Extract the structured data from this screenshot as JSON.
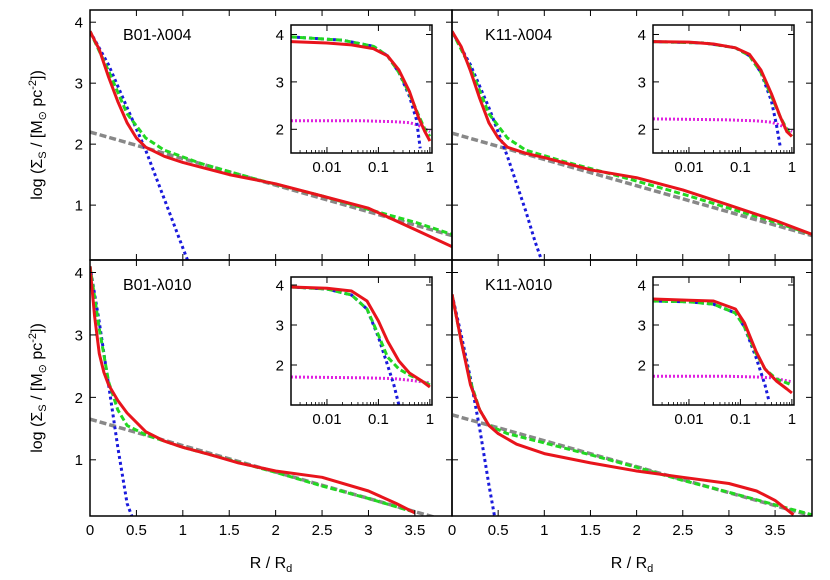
{
  "figure": {
    "ylabel_main": "log (Σ",
    "ylabel_sub": "S",
    "ylabel_tail": " / [M",
    "ylabel_sun": "⊙",
    "ylabel_units": " pc",
    "ylabel_exp": "-2",
    "ylabel_close": "])",
    "xlabel_main": "R / R",
    "xlabel_sub": "d"
  },
  "colors": {
    "total": "#e8141c",
    "sum": "#22d822",
    "bulge": "#1a1adc",
    "disk_inner": "#e020e0",
    "disk": "#888888"
  },
  "chart_data": [
    {
      "type": "line",
      "title": "B01-λ004",
      "xlim": [
        0,
        3.9
      ],
      "ylim": [
        0.1,
        4.2
      ],
      "x_ticks": [
        0,
        0.5,
        1,
        1.5,
        2,
        2.5,
        3,
        3.5
      ],
      "x_tick_labels": [
        "",
        "",
        "",
        "",
        "",
        "",
        "",
        ""
      ],
      "y_ticks": [
        1,
        2,
        3,
        4
      ],
      "y_tick_labels": [
        "1",
        "2",
        "3",
        "4"
      ],
      "series": [
        {
          "key": "disk",
          "x": [
            0,
            3.9
          ],
          "y": [
            2.2,
            0.5
          ]
        },
        {
          "key": "bulge",
          "x": [
            0,
            0.2,
            0.4,
            0.6,
            0.8,
            1.0,
            1.05
          ],
          "y": [
            3.85,
            3.3,
            2.6,
            1.9,
            1.1,
            0.3,
            0.1
          ]
        },
        {
          "key": "sum",
          "x": [
            0,
            0.2,
            0.4,
            0.6,
            0.8,
            1.2,
            1.8,
            2.5,
            3.0,
            3.5,
            3.9
          ],
          "y": [
            3.85,
            3.2,
            2.5,
            2.1,
            1.9,
            1.68,
            1.42,
            1.15,
            0.93,
            0.72,
            0.52
          ]
        },
        {
          "key": "total",
          "x": [
            0,
            0.1,
            0.2,
            0.3,
            0.4,
            0.5,
            0.6,
            0.8,
            1.0,
            1.2,
            1.5,
            2.0,
            2.5,
            3.0,
            3.5,
            3.9
          ],
          "y": [
            3.85,
            3.55,
            3.1,
            2.7,
            2.35,
            2.1,
            1.95,
            1.8,
            1.7,
            1.62,
            1.5,
            1.35,
            1.15,
            0.95,
            0.6,
            0.32
          ]
        }
      ],
      "inset": {
        "xlim": [
          0.002,
          1.1
        ],
        "ylim": [
          1.5,
          4.2
        ],
        "x_ticks": [
          0.01,
          0.1,
          1
        ],
        "x_tick_labels": [
          "0.01",
          "0.1",
          "1"
        ],
        "y_ticks": [
          2,
          3,
          4
        ],
        "y_tick_labels": [
          "2",
          "3",
          "4"
        ],
        "series": [
          {
            "key": "disk_inner",
            "x": [
              0.002,
              0.05,
              0.2,
              0.4,
              0.55,
              0.7,
              1.0
            ],
            "y": [
              2.18,
              2.18,
              2.16,
              2.14,
              2.1,
              2.05,
              1.95
            ]
          },
          {
            "key": "bulge",
            "x": [
              0.002,
              0.02,
              0.08,
              0.15,
              0.25,
              0.4,
              0.55,
              0.65
            ],
            "y": [
              3.95,
              3.88,
              3.75,
              3.55,
              3.2,
              2.7,
              2.2,
              1.6
            ]
          },
          {
            "key": "sum",
            "x": [
              0.002,
              0.02,
              0.08,
              0.15,
              0.25,
              0.4,
              0.6,
              0.8,
              1.0
            ],
            "y": [
              3.95,
              3.88,
              3.75,
              3.55,
              3.2,
              2.75,
              2.3,
              2.0,
              1.85
            ]
          },
          {
            "key": "total",
            "x": [
              0.002,
              0.01,
              0.03,
              0.08,
              0.15,
              0.25,
              0.4,
              0.6,
              0.8,
              1.0
            ],
            "y": [
              3.85,
              3.82,
              3.78,
              3.7,
              3.55,
              3.25,
              2.8,
              2.25,
              1.95,
              1.75
            ]
          }
        ]
      }
    },
    {
      "type": "line",
      "title": "K11-λ004",
      "xlim": [
        0,
        3.9
      ],
      "ylim": [
        0.1,
        4.2
      ],
      "x_ticks": [
        0,
        0.5,
        1,
        1.5,
        2,
        2.5,
        3,
        3.5
      ],
      "x_tick_labels": [
        "",
        "",
        "",
        "",
        "",
        "",
        "",
        ""
      ],
      "y_ticks": [
        1,
        2,
        3,
        4
      ],
      "y_tick_labels": [
        "",
        "",
        "",
        ""
      ],
      "series": [
        {
          "key": "disk",
          "x": [
            0,
            3.9
          ],
          "y": [
            2.18,
            0.5
          ]
        },
        {
          "key": "bulge",
          "x": [
            0,
            0.2,
            0.4,
            0.6,
            0.8,
            0.9,
            0.97
          ],
          "y": [
            3.85,
            3.3,
            2.6,
            1.8,
            0.9,
            0.4,
            0.1
          ]
        },
        {
          "key": "sum",
          "x": [
            0,
            0.2,
            0.4,
            0.6,
            0.8,
            1.2,
            1.8,
            2.5,
            3.0,
            3.5,
            3.9
          ],
          "y": [
            3.85,
            3.25,
            2.5,
            2.1,
            1.9,
            1.72,
            1.48,
            1.18,
            0.95,
            0.72,
            0.52
          ]
        },
        {
          "key": "total",
          "x": [
            0,
            0.1,
            0.2,
            0.3,
            0.4,
            0.5,
            0.6,
            0.8,
            1.0,
            1.2,
            1.5,
            2.0,
            2.5,
            3.0,
            3.5,
            3.9
          ],
          "y": [
            3.85,
            3.6,
            3.2,
            2.75,
            2.35,
            2.1,
            1.95,
            1.85,
            1.78,
            1.7,
            1.58,
            1.45,
            1.25,
            1.0,
            0.75,
            0.52
          ]
        }
      ],
      "inset": {
        "xlim": [
          0.002,
          1.1
        ],
        "ylim": [
          1.5,
          4.2
        ],
        "x_ticks": [
          0.01,
          0.1,
          1
        ],
        "x_tick_labels": [
          "0.01",
          "0.1",
          "1"
        ],
        "y_ticks": [
          2,
          3,
          4
        ],
        "y_tick_labels": [
          "2",
          "3",
          "4"
        ],
        "series": [
          {
            "key": "disk_inner",
            "x": [
              0.002,
              0.05,
              0.2,
              0.4,
              0.55,
              0.7,
              1.0
            ],
            "y": [
              2.22,
              2.2,
              2.18,
              2.15,
              2.1,
              2.05,
              1.95
            ]
          },
          {
            "key": "bulge",
            "x": [
              0.002,
              0.02,
              0.08,
              0.15,
              0.25,
              0.4,
              0.5,
              0.6
            ],
            "y": [
              3.85,
              3.82,
              3.72,
              3.55,
              3.2,
              2.6,
              2.1,
              1.6
            ]
          },
          {
            "key": "sum",
            "x": [
              0.002,
              0.02,
              0.08,
              0.15,
              0.25,
              0.4,
              0.6,
              0.8,
              1.0
            ],
            "y": [
              3.85,
              3.82,
              3.72,
              3.55,
              3.2,
              2.7,
              2.25,
              2.0,
              1.85
            ]
          },
          {
            "key": "total",
            "x": [
              0.002,
              0.01,
              0.03,
              0.08,
              0.15,
              0.25,
              0.4,
              0.6,
              0.8,
              1.0
            ],
            "y": [
              3.85,
              3.84,
              3.8,
              3.72,
              3.58,
              3.25,
              2.75,
              2.25,
              1.95,
              1.85
            ]
          }
        ]
      }
    },
    {
      "type": "line",
      "title": "B01-λ010",
      "xlim": [
        0,
        3.9
      ],
      "ylim": [
        0.1,
        4.2
      ],
      "x_ticks": [
        0,
        0.5,
        1,
        1.5,
        2,
        2.5,
        3,
        3.5
      ],
      "x_tick_labels": [
        "0",
        "0.5",
        "1",
        "1.5",
        "2",
        "2.5",
        "3",
        "3.5"
      ],
      "y_ticks": [
        1,
        2,
        3,
        4
      ],
      "y_tick_labels": [
        "1",
        "2",
        "3",
        "4"
      ],
      "series": [
        {
          "key": "disk",
          "x": [
            0,
            3.9
          ],
          "y": [
            1.65,
            0.0
          ]
        },
        {
          "key": "bulge",
          "x": [
            0,
            0.1,
            0.2,
            0.3,
            0.4,
            0.45
          ],
          "y": [
            4.1,
            3.2,
            2.2,
            1.2,
            0.3,
            0.1
          ]
        },
        {
          "key": "sum",
          "x": [
            0,
            0.1,
            0.2,
            0.3,
            0.4,
            0.6,
            1.0,
            1.5,
            2.0,
            2.5,
            3.0,
            3.5
          ],
          "y": [
            4.1,
            3.1,
            2.25,
            1.8,
            1.55,
            1.4,
            1.2,
            1.0,
            0.8,
            0.58,
            0.38,
            0.16
          ]
        },
        {
          "key": "total",
          "x": [
            0,
            0.05,
            0.1,
            0.15,
            0.2,
            0.3,
            0.4,
            0.6,
            0.8,
            1.0,
            1.3,
            1.6,
            2.0,
            2.5,
            3.0,
            3.3,
            3.5
          ],
          "y": [
            4.1,
            3.3,
            2.7,
            2.4,
            2.2,
            1.95,
            1.75,
            1.45,
            1.3,
            1.2,
            1.08,
            0.95,
            0.82,
            0.72,
            0.5,
            0.3,
            0.15
          ]
        }
      ],
      "inset": {
        "xlim": [
          0.002,
          1.1
        ],
        "ylim": [
          1.0,
          4.2
        ],
        "x_ticks": [
          0.01,
          0.1,
          1
        ],
        "x_tick_labels": [
          "0.01",
          "0.1",
          "1"
        ],
        "y_ticks": [
          2,
          3,
          4
        ],
        "y_tick_labels": [
          "2",
          "3",
          "4"
        ],
        "series": [
          {
            "key": "disk_inner",
            "x": [
              0.002,
              0.05,
              0.2,
              0.4,
              0.7,
              1.0
            ],
            "y": [
              1.7,
              1.68,
              1.66,
              1.62,
              1.58,
              1.55
            ]
          },
          {
            "key": "bulge",
            "x": [
              0.002,
              0.01,
              0.03,
              0.06,
              0.1,
              0.15,
              0.2,
              0.25
            ],
            "y": [
              3.95,
              3.9,
              3.75,
              3.4,
              2.7,
              2.0,
              1.5,
              1.0
            ]
          },
          {
            "key": "sum",
            "x": [
              0.002,
              0.01,
              0.03,
              0.06,
              0.1,
              0.15,
              0.25,
              0.4,
              0.7,
              1.0
            ],
            "y": [
              3.95,
              3.9,
              3.75,
              3.4,
              2.75,
              2.2,
              1.9,
              1.75,
              1.6,
              1.5
            ]
          },
          {
            "key": "total",
            "x": [
              0.002,
              0.01,
              0.03,
              0.06,
              0.1,
              0.15,
              0.25,
              0.4,
              0.7,
              1.0
            ],
            "y": [
              3.95,
              3.92,
              3.85,
              3.6,
              3.1,
              2.6,
              2.1,
              1.8,
              1.6,
              1.45
            ]
          }
        ]
      }
    },
    {
      "type": "line",
      "title": "K11-λ010",
      "xlim": [
        0,
        3.9
      ],
      "ylim": [
        0.1,
        4.2
      ],
      "x_ticks": [
        0,
        0.5,
        1,
        1.5,
        2,
        2.5,
        3,
        3.5
      ],
      "x_tick_labels": [
        "0",
        "0.5",
        "1",
        "1.5",
        "2",
        "2.5",
        "3",
        "3.5"
      ],
      "y_ticks": [
        1,
        2,
        3,
        4
      ],
      "y_tick_labels": [
        "",
        "",
        "",
        ""
      ],
      "series": [
        {
          "key": "disk",
          "x": [
            0,
            3.9
          ],
          "y": [
            1.72,
            0.1
          ]
        },
        {
          "key": "bulge",
          "x": [
            0,
            0.1,
            0.2,
            0.3,
            0.4,
            0.46
          ],
          "y": [
            3.65,
            3.0,
            2.3,
            1.5,
            0.6,
            0.1
          ]
        },
        {
          "key": "sum",
          "x": [
            0,
            0.1,
            0.2,
            0.3,
            0.4,
            0.6,
            1.0,
            1.5,
            2.0,
            2.5,
            3.0,
            3.5,
            3.9
          ],
          "y": [
            3.65,
            2.9,
            2.25,
            1.8,
            1.55,
            1.42,
            1.27,
            1.08,
            0.88,
            0.67,
            0.48,
            0.28,
            0.12
          ]
        },
        {
          "key": "total",
          "x": [
            0,
            0.1,
            0.2,
            0.3,
            0.4,
            0.5,
            0.7,
            1.0,
            1.5,
            2.0,
            2.5,
            3.0,
            3.3,
            3.5,
            3.7
          ],
          "y": [
            3.65,
            2.9,
            2.2,
            1.8,
            1.55,
            1.42,
            1.25,
            1.1,
            0.95,
            0.82,
            0.72,
            0.62,
            0.5,
            0.35,
            0.12
          ]
        }
      ],
      "inset": {
        "xlim": [
          0.002,
          1.1
        ],
        "ylim": [
          1.0,
          4.2
        ],
        "x_ticks": [
          0.01,
          0.1,
          1
        ],
        "x_tick_labels": [
          "0.01",
          "0.1",
          "1"
        ],
        "y_ticks": [
          2,
          3,
          4
        ],
        "y_tick_labels": [
          "2",
          "3",
          "4"
        ],
        "series": [
          {
            "key": "disk_inner",
            "x": [
              0.002,
              0.05,
              0.2,
              0.4,
              0.7,
              1.0
            ],
            "y": [
              1.72,
              1.72,
              1.7,
              1.68,
              1.62,
              1.58
            ]
          },
          {
            "key": "bulge",
            "x": [
              0.002,
              0.01,
              0.03,
              0.08,
              0.12,
              0.2,
              0.3,
              0.36
            ],
            "y": [
              3.6,
              3.58,
              3.52,
              3.3,
              2.95,
              2.2,
              1.5,
              1.1
            ]
          },
          {
            "key": "sum",
            "x": [
              0.002,
              0.01,
              0.03,
              0.08,
              0.12,
              0.2,
              0.3,
              0.5,
              0.8,
              1.0
            ],
            "y": [
              3.6,
              3.58,
              3.52,
              3.3,
              2.95,
              2.3,
              1.9,
              1.65,
              1.55,
              1.5
            ]
          },
          {
            "key": "total",
            "x": [
              0.002,
              0.01,
              0.03,
              0.08,
              0.12,
              0.2,
              0.3,
              0.5,
              0.8,
              1.0
            ],
            "y": [
              3.65,
              3.62,
              3.6,
              3.4,
              3.05,
              2.35,
              1.9,
              1.6,
              1.4,
              1.3
            ]
          }
        ]
      }
    }
  ]
}
